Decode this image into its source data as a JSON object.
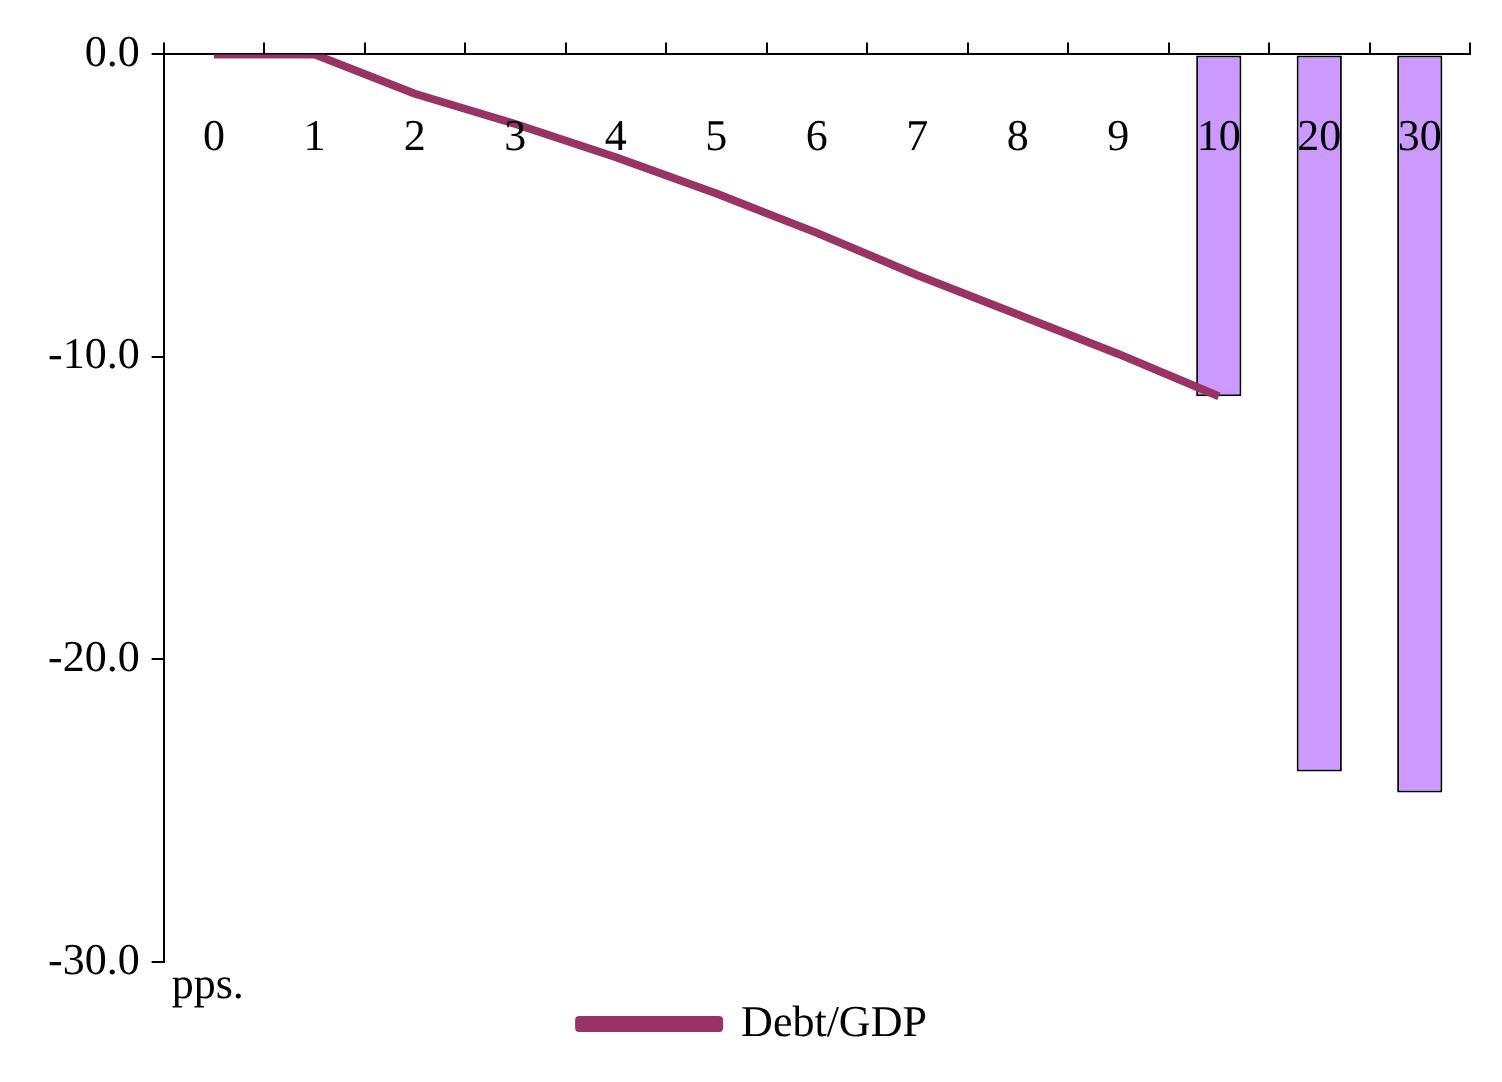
{
  "chart_data": {
    "type": "bar",
    "categories": [
      "0",
      "1",
      "2",
      "3",
      "4",
      "5",
      "6",
      "7",
      "8",
      "9",
      "10",
      "20",
      "30"
    ],
    "series": [
      {
        "color": "#cc99ff",
        "values": [
          null,
          null,
          null,
          null,
          null,
          null,
          null,
          null,
          null,
          null,
          -11.3,
          -23.7,
          -24.4
        ]
      },
      {
        "type": "line",
        "name": "Debt/GDP",
        "color": "#993366",
        "values": [
          0,
          0,
          -1.3,
          -2.3,
          -3.4,
          -4.6,
          -5.9,
          -7.3,
          -8.6,
          -9.9,
          -11.3,
          null,
          null
        ]
      }
    ],
    "ylim": [
      -30,
      0
    ],
    "yticks": [
      {
        "value": 0,
        "label": "0.0"
      },
      {
        "value": -10,
        "label": "-10.0"
      },
      {
        "value": -20,
        "label": "-20.0"
      },
      {
        "value": -30,
        "label": "-30.0"
      }
    ],
    "annotations": [
      "pps."
    ],
    "legend": "bottom",
    "grid": false
  }
}
